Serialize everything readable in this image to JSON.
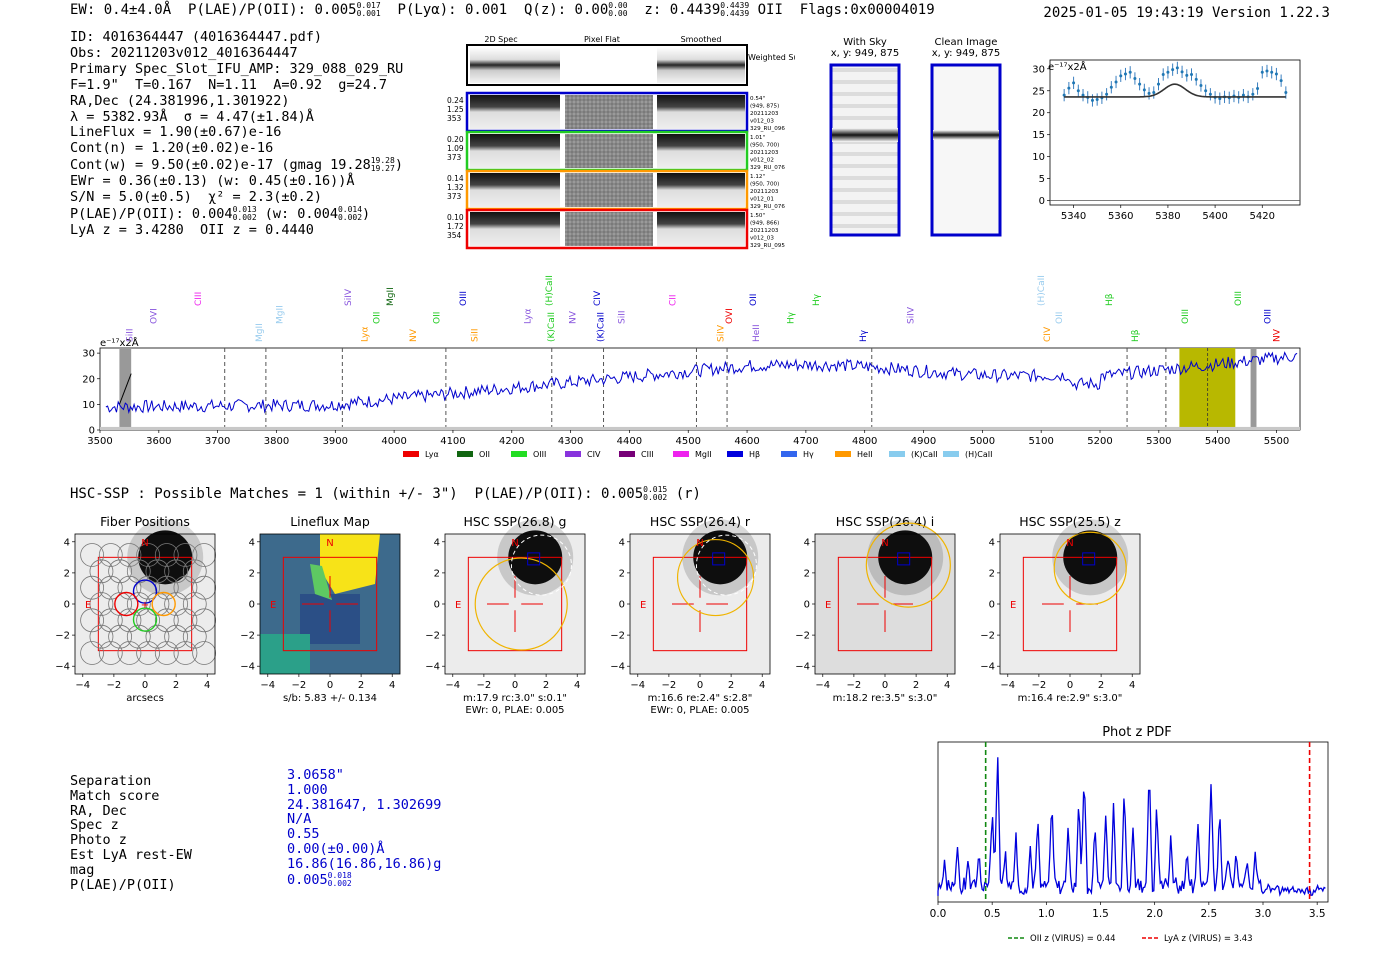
{
  "header": {
    "ew": "EW: 0.4±4.0Å",
    "plae_label": "P(LAE)/P(OII): 0.005",
    "plae_hi": "0.017",
    "plae_lo": "0.001",
    "plya": "P(Lyα): 0.001",
    "qz_label": "Q(z): 0.00",
    "qz_hi": "0.00",
    "qz_lo": "0.00",
    "z_label": "z: 0.4439",
    "z_hi": "0.4439",
    "z_lo": "0.4439",
    "z_line": "OII",
    "flags": "Flags:0x00004019",
    "datetime": "2025-01-05 19:43:19",
    "version": "Version 1.22.3"
  },
  "info": {
    "id": "ID: 4016364447 (4016364447.pdf)",
    "obs": "Obs: 20211203v012_4016364447",
    "primary": "Primary Spec_Slot_IFU_AMP: 329_088_029_RU",
    "fit": "F=1.9\"  T=0.167  N=1.11  A=0.92  g=24.7",
    "radec": "RA,Dec (24.381996,1.301922)",
    "lambda": "λ = 5382.93Å  σ = 4.47(±1.84)Å",
    "lineflux": "LineFlux = 1.90(±0.67)e-16",
    "contn": "Cont(n) = 1.20(±0.02)e-16",
    "contw": "Cont(w) = 9.50(±0.02)e-17 (gmag 19.28",
    "gmag_hi": "19.28",
    "gmag_lo": "19.27",
    "ewr": "EWr = 0.36(±0.13) (w: 0.45(±0.16))Å",
    "sn": "S/N = 5.0(±0.5)  χ² = 2.3(±0.2)",
    "plae": "P(LAE)/P(OII): 0.004",
    "plae_hi": "0.013",
    "plae_lo": "0.002",
    "plae_w": "(w: 0.004",
    "plae_w_hi": "0.014",
    "plae_w_lo": "0.002",
    "lyaz": "LyA z = 3.4280  OII z = 0.4440"
  },
  "spec2d": {
    "col_labels": [
      "2D Spec",
      "Pixel Flat",
      "Smoothed"
    ],
    "weighted_sum": "Weighted\nSum",
    "rows": [
      {
        "left": [
          "0.24",
          "1.25",
          "353"
        ],
        "right": [
          "0.54\"",
          "(949, 875)",
          "20211203",
          "v012_03",
          "329_RU_096"
        ],
        "color": "#0000cc"
      },
      {
        "left": [
          "0.20",
          "1.09",
          "373"
        ],
        "right": [
          "1.01\"",
          "(950, 700)",
          "20211203",
          "v012_02",
          "329_RU_076"
        ],
        "color": "#22cc22"
      },
      {
        "left": [
          "0.14",
          "1.32",
          "373"
        ],
        "right": [
          "1.12\"",
          "(950, 700)",
          "20211203",
          "v012_01",
          "329_RU_076"
        ],
        "color": "#ff9900"
      },
      {
        "left": [
          "0.10",
          "1.72",
          "354"
        ],
        "right": [
          "1.50\"",
          "(949, 866)",
          "20211203",
          "v012_03",
          "329_RU_095"
        ],
        "color": "#ee0000"
      }
    ]
  },
  "cutouts": {
    "with_sky": "With Sky",
    "with_sky_xy": "x, y: 949, 875",
    "clean": "Clean Image",
    "clean_xy": "x, y: 949, 875"
  },
  "zoom_chart": {
    "type": "line",
    "ylabel": "e⁻¹⁷x2Å",
    "xlim": [
      5330,
      5436
    ],
    "ylim": [
      -1,
      32
    ],
    "xticks": [
      5340,
      5360,
      5380,
      5400,
      5420
    ],
    "yticks": [
      0,
      5,
      10,
      15,
      20,
      25,
      30
    ],
    "x": [
      5336,
      5338,
      5340,
      5342,
      5344,
      5346,
      5348,
      5350,
      5352,
      5354,
      5356,
      5358,
      5360,
      5362,
      5364,
      5366,
      5368,
      5370,
      5372,
      5374,
      5376,
      5378,
      5380,
      5382,
      5384,
      5386,
      5388,
      5390,
      5392,
      5394,
      5396,
      5398,
      5400,
      5402,
      5404,
      5406,
      5408,
      5410,
      5412,
      5414,
      5416,
      5418,
      5420,
      5422,
      5424,
      5426,
      5428,
      5430
    ],
    "y": [
      24,
      25.6,
      26.8,
      25,
      24,
      23.5,
      22.8,
      23,
      23.4,
      24.2,
      25.8,
      27,
      28.4,
      28.8,
      29.2,
      27.8,
      26.5,
      25.2,
      24.4,
      24.6,
      26.5,
      28.7,
      29.2,
      29.8,
      30.2,
      29.3,
      28.5,
      28.7,
      27.6,
      26.2,
      25,
      24.2,
      23.5,
      23.2,
      23.6,
      23.4,
      23.8,
      23.5,
      24,
      23.6,
      24.2,
      25.5,
      29.2,
      29.5,
      29.2,
      28.8,
      27.3,
      24.6
    ],
    "fit_peak": 26.5,
    "fit_base": 23.6,
    "fit_center": 5382.9,
    "fit_sigma": 4.47
  },
  "full_spectrum": {
    "type": "line",
    "ylabel": "e⁻¹⁷x2Å",
    "xlim": [
      3500,
      5540
    ],
    "ylim": [
      0,
      32
    ],
    "xticks": [
      3500,
      3600,
      3700,
      3800,
      3900,
      4000,
      4100,
      4200,
      4300,
      4400,
      4500,
      4600,
      4700,
      4800,
      4900,
      5000,
      5100,
      5200,
      5300,
      5400,
      5500
    ],
    "yticks": [
      0,
      10,
      20,
      30
    ],
    "dashed_lines": [
      3712,
      3782,
      3912,
      4088,
      4268,
      4356,
      4514,
      4566,
      4812,
      5246,
      5312
    ],
    "highlight": [
      5335,
      5430
    ],
    "highlight_center": 5383,
    "shaded": [
      [
        3533,
        3553
      ],
      [
        5456,
        5466
      ]
    ],
    "line_labels": [
      {
        "label": "SiII",
        "x": 3555,
        "color": "#8855dd"
      },
      {
        "label": "OVI",
        "x": 3596,
        "color": "#8855dd"
      },
      {
        "label": "CIII",
        "x": 3672,
        "color": "#ee22ee"
      },
      {
        "label": "MgII",
        "x": 3775,
        "color": "#99ccee"
      },
      {
        "label": "MgII",
        "x": 3810,
        "color": "#99ccee"
      },
      {
        "label": "SiIV",
        "x": 3927,
        "color": "#8855dd"
      },
      {
        "label": "Lyα",
        "x": 3955,
        "color": "#ff9900"
      },
      {
        "label": "OII",
        "x": 3975,
        "color": "#22cc22"
      },
      {
        "label": "MgII",
        "x": 3998,
        "color": "#116611"
      },
      {
        "label": "NV",
        "x": 4037,
        "color": "#ff9900"
      },
      {
        "label": "OII",
        "x": 4077,
        "color": "#22cc22"
      },
      {
        "label": "OIII",
        "x": 4122,
        "color": "#0000cc"
      },
      {
        "label": "SiII",
        "x": 4142,
        "color": "#ff9900"
      },
      {
        "label": "Lyα",
        "x": 4232,
        "color": "#8855dd"
      },
      {
        "label": "(H)CaII",
        "x": 4268,
        "color": "#22cc22"
      },
      {
        "label": "(K)CaII",
        "x": 4272,
        "color": "#22cc22"
      },
      {
        "label": "NV",
        "x": 4308,
        "color": "#8855dd"
      },
      {
        "label": "CIV",
        "x": 4350,
        "color": "#0000cc"
      },
      {
        "label": "(K)CaII",
        "x": 4356,
        "color": "#0000cc"
      },
      {
        "label": "SiII",
        "x": 4392,
        "color": "#8855dd"
      },
      {
        "label": "CII",
        "x": 4478,
        "color": "#ee22ee"
      },
      {
        "label": "SiIV",
        "x": 4560,
        "color": "#ff9900"
      },
      {
        "label": "OVI",
        "x": 4574,
        "color": "#ee0000"
      },
      {
        "label": "OII",
        "x": 4615,
        "color": "#0000cc"
      },
      {
        "label": "HeII",
        "x": 4620,
        "color": "#8855dd"
      },
      {
        "label": "Hγ",
        "x": 4679,
        "color": "#22cc22"
      },
      {
        "label": "Hγ",
        "x": 4722,
        "color": "#22cc22"
      },
      {
        "label": "Hγ",
        "x": 4802,
        "color": "#0000cc"
      },
      {
        "label": "SiIV",
        "x": 4883,
        "color": "#8855dd"
      },
      {
        "label": "(H)CaII",
        "x": 5105,
        "color": "#99ccee"
      },
      {
        "label": "CIV",
        "x": 5115,
        "color": "#ff9900"
      },
      {
        "label": "OII",
        "x": 5135,
        "color": "#99ccee"
      },
      {
        "label": "Hβ",
        "x": 5220,
        "color": "#22cc22"
      },
      {
        "label": "Hβ",
        "x": 5265,
        "color": "#22cc22"
      },
      {
        "label": "OIII",
        "x": 5350,
        "color": "#22cc22"
      },
      {
        "label": "OIII",
        "x": 5440,
        "color": "#22cc22"
      },
      {
        "label": "NV",
        "x": 5505,
        "color": "#ee0000"
      },
      {
        "label": "OIII",
        "x": 5490,
        "color": "#0000cc"
      }
    ],
    "legend": [
      {
        "label": "Lyα",
        "color": "#ee0000"
      },
      {
        "label": "OII",
        "color": "#116611"
      },
      {
        "label": "OIII",
        "color": "#22dd22"
      },
      {
        "label": "CIV",
        "color": "#8833dd"
      },
      {
        "label": "CIII",
        "color": "#770077"
      },
      {
        "label": "MgII",
        "color": "#ee22ee"
      },
      {
        "label": "Hβ",
        "color": "#0000dd"
      },
      {
        "label": "Hγ",
        "color": "#3366ee"
      },
      {
        "label": "HeII",
        "color": "#ff9900"
      },
      {
        "label": "(K)CaII",
        "color": "#88ccee"
      },
      {
        "label": "(H)CaII",
        "color": "#88ccee"
      }
    ]
  },
  "hsc": {
    "line": "HSC-SSP : Possible Matches = 1 (within +/- 3\")  P(LAE)/P(OII): 0.005",
    "hi": "0.015",
    "lo": "0.002",
    "band": "(r)"
  },
  "panels": [
    {
      "title": "Fiber Positions",
      "caption": [
        "arcsecs"
      ],
      "kind": "fiber"
    },
    {
      "title": "Lineflux Map",
      "caption": [
        "s/b: 5.83 +/- 0.134"
      ],
      "kind": "lineflux"
    },
    {
      "title": "HSC SSP(26.8) g",
      "caption": [
        "m:17.9 rc:3.0\"  s:0.1\"",
        "EWr: 0, PLAE: 0.005"
      ],
      "kind": "hsc"
    },
    {
      "title": "HSC SSP(26.4) r",
      "caption": [
        "m:16.6  re:2.4\"  s:2.8\"",
        "EWr: 0, PLAE: 0.005"
      ],
      "kind": "hsc"
    },
    {
      "title": "HSC SSP(26.4) i",
      "caption": [
        "m:18.2  re:3.5\"  s:3.0\""
      ],
      "kind": "hsc"
    },
    {
      "title": "HSC SSP(25.5) z",
      "caption": [
        "m:16.4  re:2.9\"  s:3.0\""
      ],
      "kind": "hsc"
    }
  ],
  "cutout_axes": {
    "ticks": [
      -4,
      -2,
      0,
      2,
      4
    ],
    "n_label": "N",
    "e_label": "E"
  },
  "match": {
    "keys": [
      "Separation",
      "Match score",
      "RA, Dec",
      "Spec z",
      "Photo z",
      "Est LyA rest-EW",
      "mag",
      "P(LAE)/P(OII)"
    ],
    "separation": "3.0658\"",
    "score": "1.000",
    "radec": "24.381647, 1.302699",
    "specz": "N/A",
    "photoz": "0.55",
    "ew": "0.00(±0.00)Å",
    "mag": "16.86(16.86,16.86)g",
    "plae": "0.005",
    "plae_hi": "0.018",
    "plae_lo": "0.002"
  },
  "photz": {
    "type": "line",
    "title": "Phot z PDF",
    "xlim": [
      0,
      3.6
    ],
    "xticks": [
      0.0,
      0.5,
      1.0,
      1.5,
      2.0,
      2.5,
      3.0,
      3.5
    ],
    "oii_z": 0.44,
    "lya_z": 3.43,
    "legend_oii": "OII z (VIRUS) = 0.44",
    "legend_lya": "LyA z (VIRUS) = 3.43",
    "peaks": [
      [
        0.06,
        0.22
      ],
      [
        0.18,
        0.32
      ],
      [
        0.28,
        0.25
      ],
      [
        0.38,
        0.28
      ],
      [
        0.5,
        0.58
      ],
      [
        0.55,
        1.0
      ],
      [
        0.62,
        0.3
      ],
      [
        0.72,
        0.4
      ],
      [
        0.85,
        0.35
      ],
      [
        0.92,
        0.55
      ],
      [
        1.05,
        0.62
      ],
      [
        1.2,
        0.48
      ],
      [
        1.3,
        0.7
      ],
      [
        1.35,
        0.82
      ],
      [
        1.45,
        0.48
      ],
      [
        1.55,
        0.55
      ],
      [
        1.62,
        0.6
      ],
      [
        1.72,
        0.72
      ],
      [
        1.8,
        0.42
      ],
      [
        1.95,
        0.87
      ],
      [
        2.02,
        0.62
      ],
      [
        2.15,
        0.4
      ],
      [
        2.3,
        0.32
      ],
      [
        2.4,
        0.5
      ],
      [
        2.52,
        0.74
      ],
      [
        2.6,
        0.55
      ],
      [
        2.68,
        0.3
      ],
      [
        2.75,
        0.28
      ],
      [
        2.85,
        0.25
      ],
      [
        2.93,
        0.32
      ],
      [
        3.05,
        0.12
      ],
      [
        3.25,
        0.08
      ],
      [
        3.5,
        0.1
      ]
    ]
  },
  "colors": {
    "blue": "#0000cc",
    "red": "#ee0000",
    "green": "#22cc22",
    "orange": "#ff9900",
    "olive": "#b8b800",
    "lineflux_yellow": "#f7e318"
  }
}
